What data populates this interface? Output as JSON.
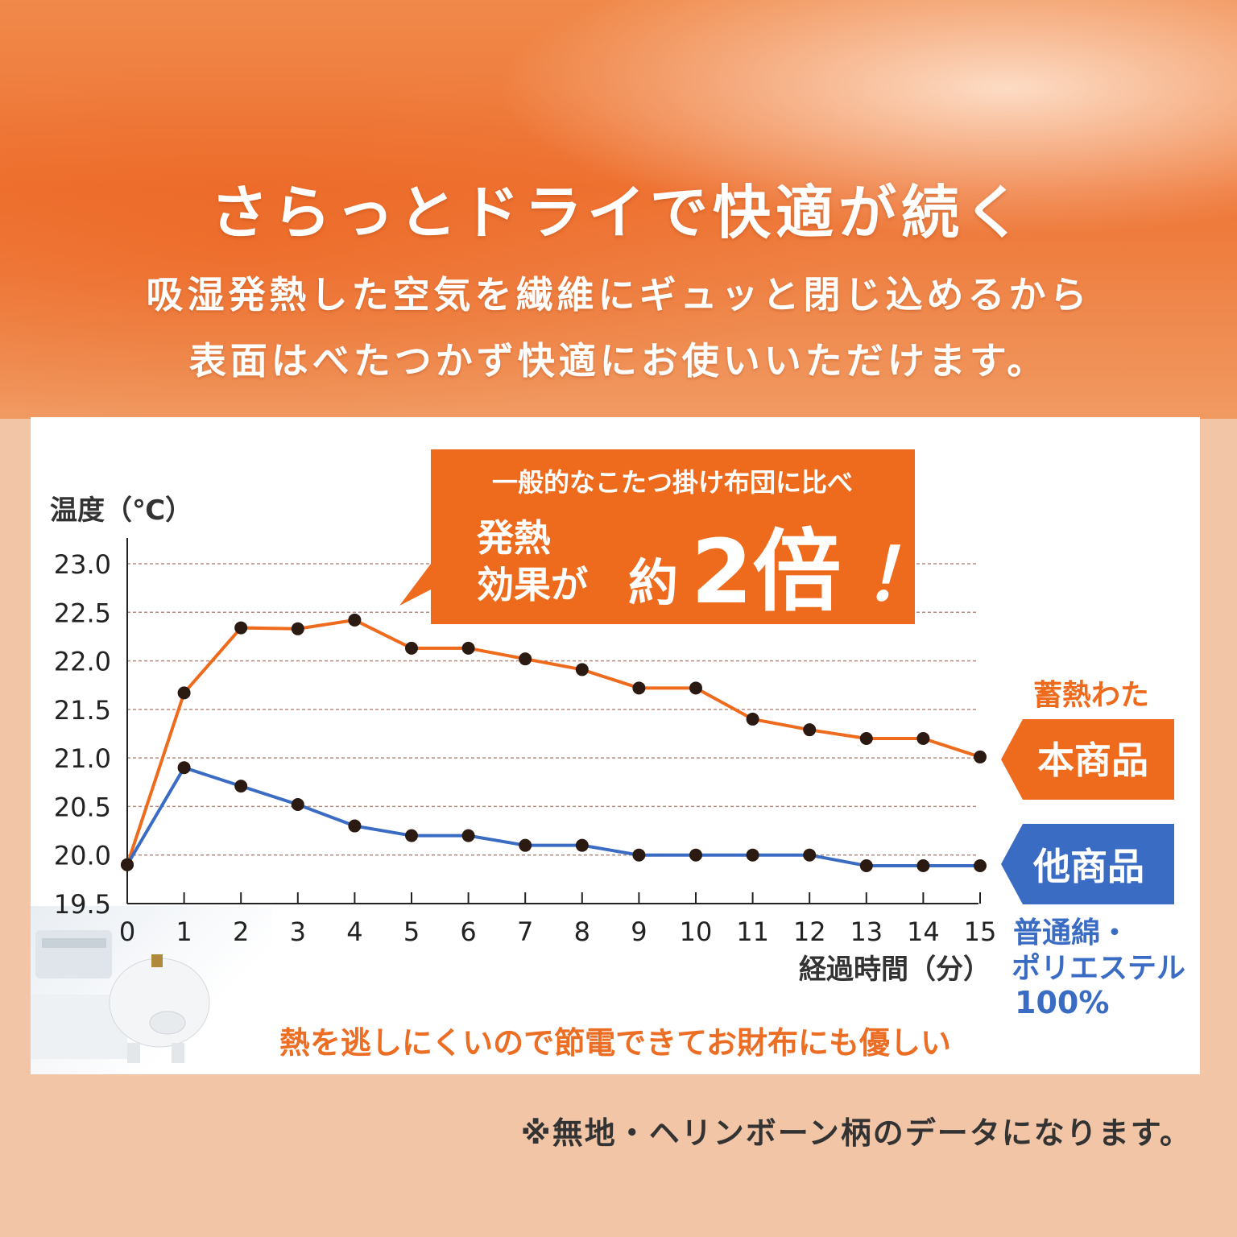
{
  "hero": {
    "title": "さらっとドライで快適が続く",
    "subtitle_line1": "吸湿発熱した空気を繊維にギュッと閉じ込めるから",
    "subtitle_line2": "表面はべたつかず快適にお使いいただけます。"
  },
  "callout": {
    "line1": "一般的なこたつ掛け布団に比べ",
    "line2a": "発熱",
    "line2b": "効果が",
    "line2c": "約",
    "number": "2倍",
    "exclaim": "！"
  },
  "labels": {
    "product_caption": "蓄熱わた",
    "product_tag": "本商品",
    "other_tag": "他商品",
    "other_caption_line1": "普通綿・",
    "other_caption_line2": "ポリエステル",
    "other_caption_line3": "100%"
  },
  "footer_text": "熱を逃しにくいので節電できてお財布にも優しい",
  "note": "※無地・ヘリンボーン柄のデータになります。",
  "colors": {
    "orange": "#ee6a1c",
    "blue": "#3b6cc4",
    "point": "#2b1a12",
    "grid": "#b98a80"
  },
  "chart_data": {
    "type": "line",
    "ylabel": "温度（℃）",
    "xlabel": "経過時間（分）",
    "ylim": [
      19.5,
      23.0
    ],
    "yticks": [
      "23.0",
      "22.5",
      "22.0",
      "21.5",
      "21.0",
      "20.5",
      "20.0",
      "19.5"
    ],
    "x": [
      0,
      1,
      2,
      3,
      4,
      5,
      6,
      7,
      8,
      9,
      10,
      11,
      12,
      13,
      14,
      15
    ],
    "xticks": [
      "0",
      "1",
      "2",
      "3",
      "4",
      "5",
      "6",
      "7",
      "8",
      "9",
      "10",
      "11",
      "12",
      "13",
      "14",
      "15"
    ],
    "series": [
      {
        "name": "本商品",
        "color": "#ee6a1c",
        "values": [
          19.9,
          21.67,
          22.34,
          22.33,
          22.42,
          22.13,
          22.13,
          22.02,
          21.91,
          21.72,
          21.72,
          21.4,
          21.29,
          21.2,
          21.2,
          21.01
        ]
      },
      {
        "name": "他商品",
        "color": "#3b6cc4",
        "values": [
          19.9,
          20.9,
          20.71,
          20.52,
          20.3,
          20.2,
          20.2,
          20.1,
          20.1,
          20.0,
          20.0,
          20.0,
          20.0,
          19.89,
          19.89,
          19.89
        ]
      }
    ],
    "grid": true
  }
}
